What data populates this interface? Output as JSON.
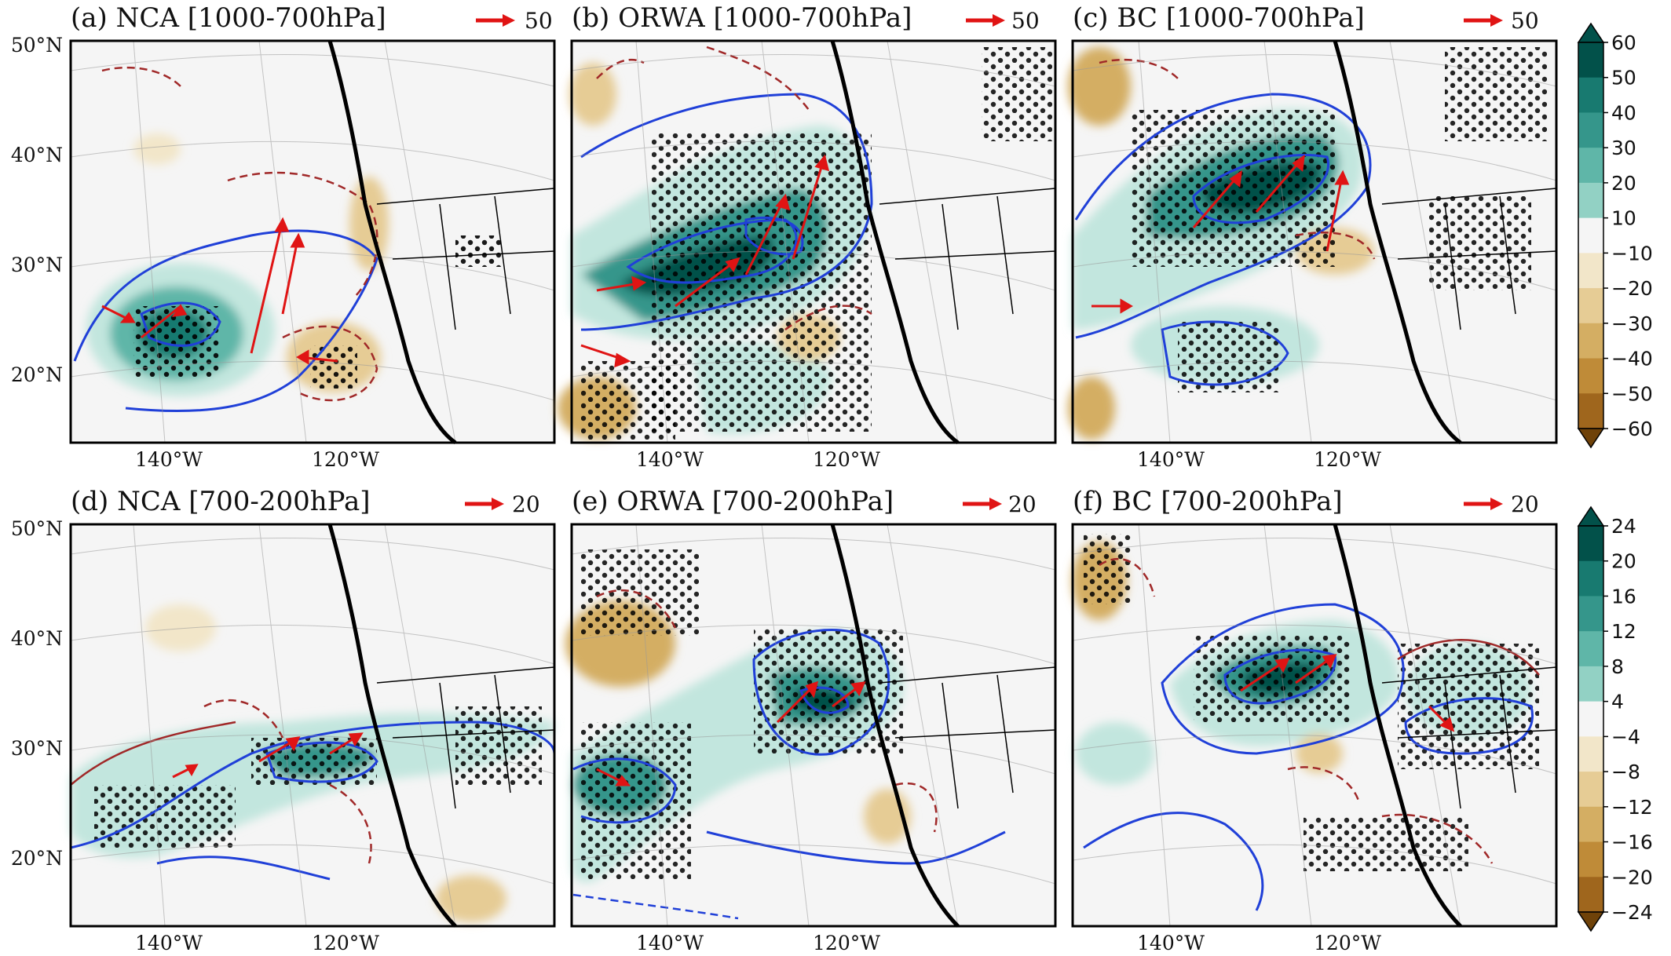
{
  "figure": {
    "colors": {
      "positive": [
        "#e6f4f1",
        "#c2e6de",
        "#92d1c4",
        "#5fb6a8",
        "#35968b",
        "#187a70",
        "#02514a"
      ],
      "negative": [
        "#f2e6c9",
        "#e6cc95",
        "#d4ae63",
        "#bf8b38",
        "#9f661d",
        "#6f4209"
      ],
      "neutral": "#f5f5f5",
      "vector": "#e01414",
      "contour_positive": "#2040d8",
      "contour_negative": "#a02828",
      "coast": "#000000"
    },
    "rows": [
      {
        "colorbar": {
          "ticks": [
            "60",
            "50",
            "40",
            "30",
            "20",
            "10",
            "−10",
            "−20",
            "−30",
            "−40",
            "−50",
            "−60"
          ],
          "bins": 11
        },
        "panels": [
          {
            "title": "(a) NCA [1000-700hPa]",
            "ref_label": "50",
            "blob": "nca_low"
          },
          {
            "title": "(b) ORWA [1000-700hPa]",
            "ref_label": "50",
            "blob": "orwa_low"
          },
          {
            "title": "(c) BC [1000-700hPa]",
            "ref_label": "50",
            "blob": "bc_low"
          }
        ]
      },
      {
        "colorbar": {
          "ticks": [
            "24",
            "20",
            "16",
            "12",
            "8",
            "4",
            "−4",
            "−8",
            "−12",
            "−16",
            "−20",
            "−24"
          ],
          "bins": 11
        },
        "panels": [
          {
            "title": "(d) NCA [700-200hPa]",
            "ref_label": "20",
            "blob": "nca_up"
          },
          {
            "title": "(e) ORWA [700-200hPa]",
            "ref_label": "20",
            "blob": "orwa_up"
          },
          {
            "title": "(f) BC [700-200hPa]",
            "ref_label": "20",
            "blob": "bc_up"
          }
        ]
      }
    ],
    "lat_labels": [
      "50°N",
      "40°N",
      "30°N",
      "20°N"
    ],
    "lon_labels": [
      "140°W",
      "120°W"
    ]
  }
}
